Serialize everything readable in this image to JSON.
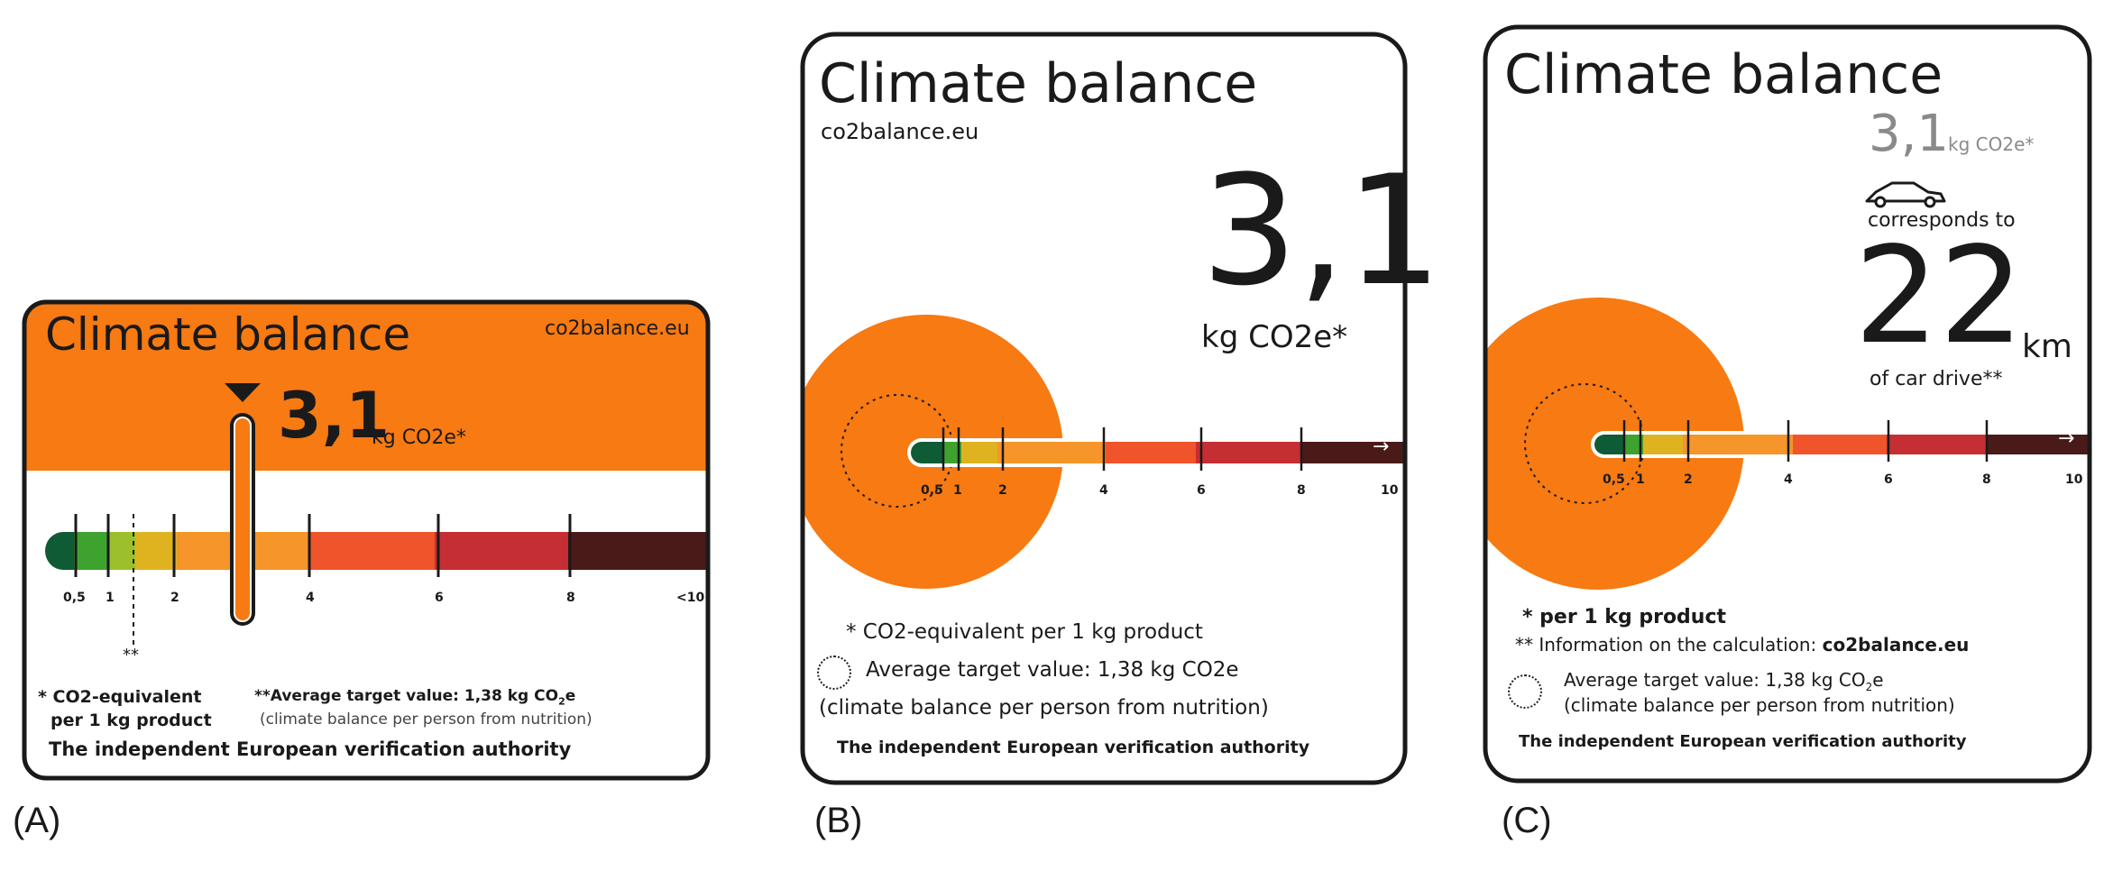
{
  "colors": {
    "orange": "#f77a12",
    "border": "#1a1a1a",
    "dark_green": "#0f5b35",
    "green": "#3da32e",
    "yellow_green": "#9cc02c",
    "yellow": "#dfb320",
    "orange_scale": "#f5952a",
    "red_orange": "#f0542a",
    "red": "#c52e33",
    "dark_red": "#4a1a19"
  },
  "panels": [
    {
      "letter": "(A)",
      "title": "Climate balance",
      "url": "co2balance.eu",
      "value": "3,1",
      "unit": "kg CO2e*",
      "target_marker": "**",
      "ticks": [
        "0,5",
        "1",
        "2",
        "4",
        "6",
        "8",
        "<10"
      ],
      "footnote_1_line1": "* CO2-equivalent",
      "footnote_1_line2": "per 1 kg product",
      "footnote_2_line1_pre": "**Average target value: 1,38 kg CO",
      "footnote_2_sub": "2",
      "footnote_2_line1_post": "e",
      "footnote_2_line2": "(climate balance per person from nutrition)",
      "authority": "The independent European verification authority",
      "value_level": 3.1
    },
    {
      "letter": "(B)",
      "title": "Climate balance",
      "url": "co2balance.eu",
      "value": "3,1",
      "unit": "kg CO2e*",
      "ticks": [
        "0,5",
        "1",
        "2",
        "4",
        "6",
        "8",
        "10"
      ],
      "arrow": "→",
      "footnote_1": "* CO2-equivalent per 1 kg product",
      "footnote_2": "Average target value: 1,38 kg CO2e",
      "footnote_3": "(climate balance per person from nutrition)",
      "authority": "The independent European verification authority"
    },
    {
      "letter": "(C)",
      "title": "Climate balance",
      "value_small": "3,1",
      "unit_small": "kg CO2e*",
      "corresponds": "corresponds to",
      "km_value": "22",
      "km_unit": "km",
      "car_drive": "of car drive**",
      "ticks": [
        "0,5",
        "1",
        "2",
        "4",
        "6",
        "8",
        "10"
      ],
      "arrow": "→",
      "footnote_1": "* per 1 kg product",
      "footnote_2_pre": "** Information on the calculation: ",
      "footnote_2_bold": "co2balance.eu",
      "footnote_3_pre": "Average target value: 1,38 kg CO",
      "footnote_3_sub": "2",
      "footnote_3_post": "e",
      "footnote_4": "(climate balance per person from nutrition)",
      "authority": "The independent European verification authority",
      "car_icon": "car-icon"
    }
  ]
}
